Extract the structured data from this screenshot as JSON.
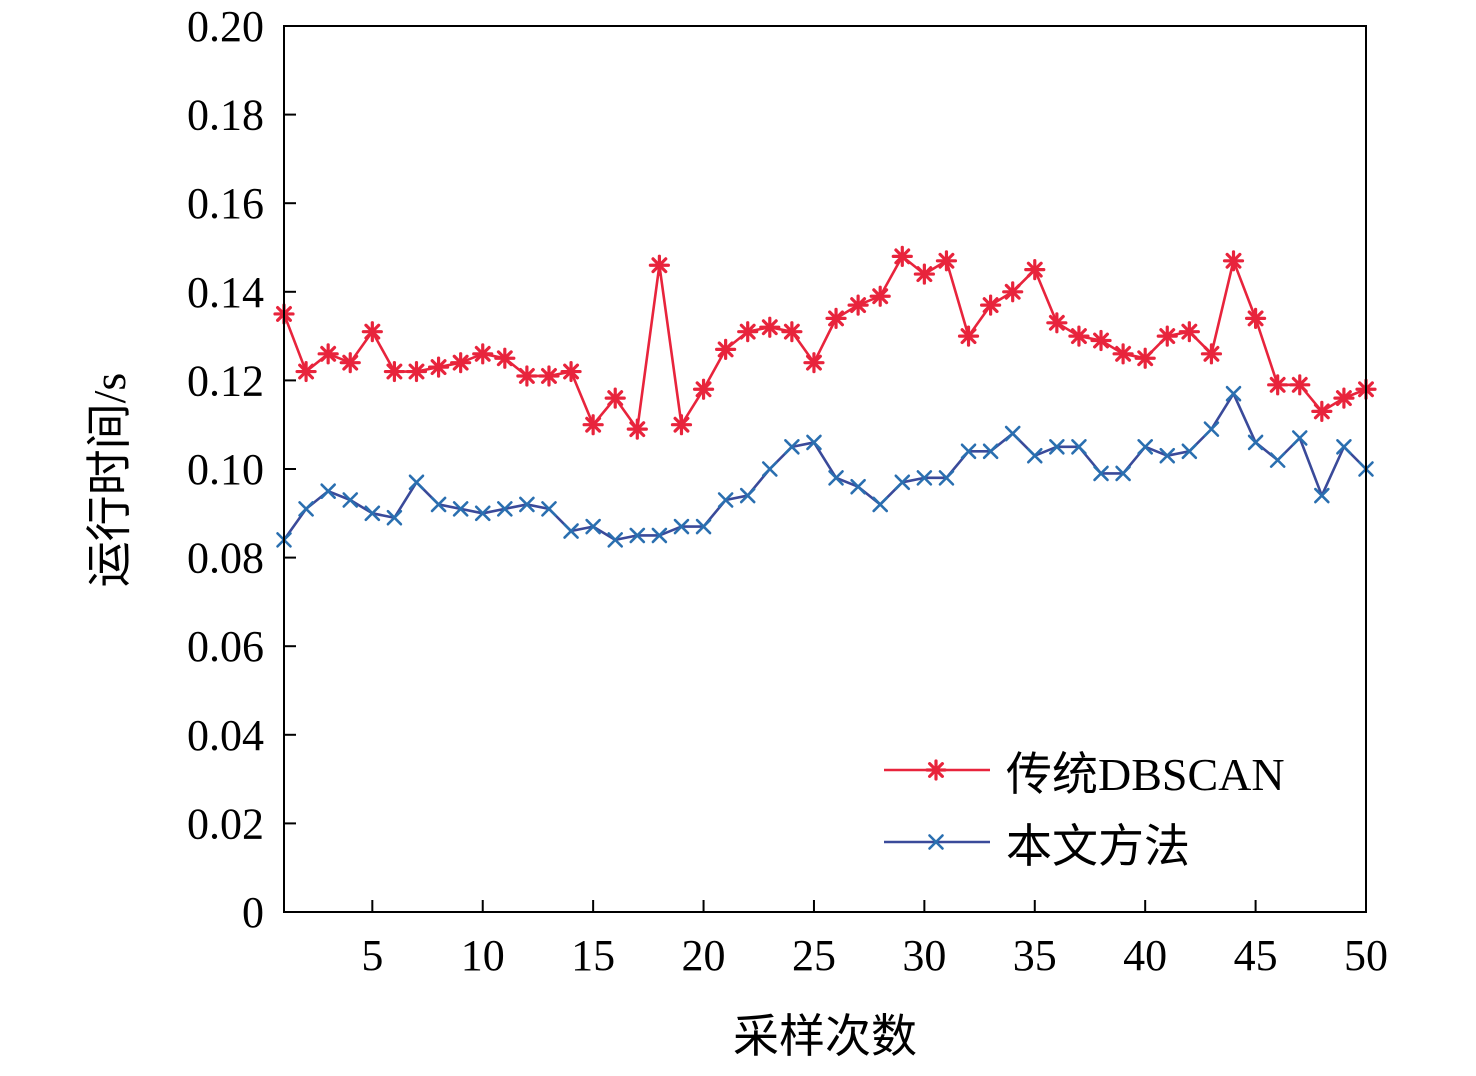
{
  "chart_data": {
    "type": "line",
    "xlabel": "采样次数",
    "ylabel": "运行时间/s",
    "xlim": [
      1,
      50
    ],
    "ylim": [
      0,
      0.2
    ],
    "x_ticks": [
      5,
      10,
      15,
      20,
      25,
      30,
      35,
      40,
      45,
      50
    ],
    "x_tick_labels": [
      "5",
      "10",
      "15",
      "20",
      "25",
      "30",
      "35",
      "40",
      "45",
      "50"
    ],
    "y_ticks": [
      0,
      0.02,
      0.04,
      0.06,
      0.08,
      0.1,
      0.12,
      0.14,
      0.16,
      0.18,
      0.2
    ],
    "y_tick_labels": [
      "0",
      "0.02",
      "0.04",
      "0.06",
      "0.08",
      "0.10",
      "0.12",
      "0.14",
      "0.16",
      "0.18",
      "0.20"
    ],
    "grid": false,
    "legend_position": "bottom-right",
    "x": [
      1,
      2,
      3,
      4,
      5,
      6,
      7,
      8,
      9,
      10,
      11,
      12,
      13,
      14,
      15,
      16,
      17,
      18,
      19,
      20,
      21,
      22,
      23,
      24,
      25,
      26,
      27,
      28,
      29,
      30,
      31,
      32,
      33,
      34,
      35,
      36,
      37,
      38,
      39,
      40,
      41,
      42,
      43,
      44,
      45,
      46,
      47,
      48,
      49,
      50
    ],
    "series": [
      {
        "name": "传统DBSCAN",
        "color": "#e8243c",
        "marker": "asterisk",
        "values": [
          0.135,
          0.122,
          0.126,
          0.124,
          0.131,
          0.122,
          0.122,
          0.123,
          0.124,
          0.126,
          0.125,
          0.121,
          0.121,
          0.122,
          0.11,
          0.116,
          0.109,
          0.146,
          0.11,
          0.118,
          0.127,
          0.131,
          0.132,
          0.131,
          0.124,
          0.134,
          0.137,
          0.139,
          0.148,
          0.144,
          0.147,
          0.13,
          0.137,
          0.14,
          0.145,
          0.133,
          0.13,
          0.129,
          0.126,
          0.125,
          0.13,
          0.131,
          0.126,
          0.147,
          0.134,
          0.119,
          0.119,
          0.113,
          0.116,
          0.118
        ]
      },
      {
        "name": "本文方法",
        "color": "#3a4a9a",
        "marker_color": "#2a6fb0",
        "marker": "x",
        "values": [
          0.084,
          0.091,
          0.095,
          0.093,
          0.09,
          0.089,
          0.097,
          0.092,
          0.091,
          0.09,
          0.091,
          0.092,
          0.091,
          0.086,
          0.087,
          0.084,
          0.085,
          0.085,
          0.087,
          0.087,
          0.093,
          0.094,
          0.1,
          0.105,
          0.106,
          0.098,
          0.096,
          0.092,
          0.097,
          0.098,
          0.098,
          0.104,
          0.104,
          0.108,
          0.103,
          0.105,
          0.105,
          0.099,
          0.099,
          0.105,
          0.103,
          0.104,
          0.109,
          0.117,
          0.106,
          0.102,
          0.107,
          0.094,
          0.105,
          0.1
        ]
      }
    ]
  }
}
